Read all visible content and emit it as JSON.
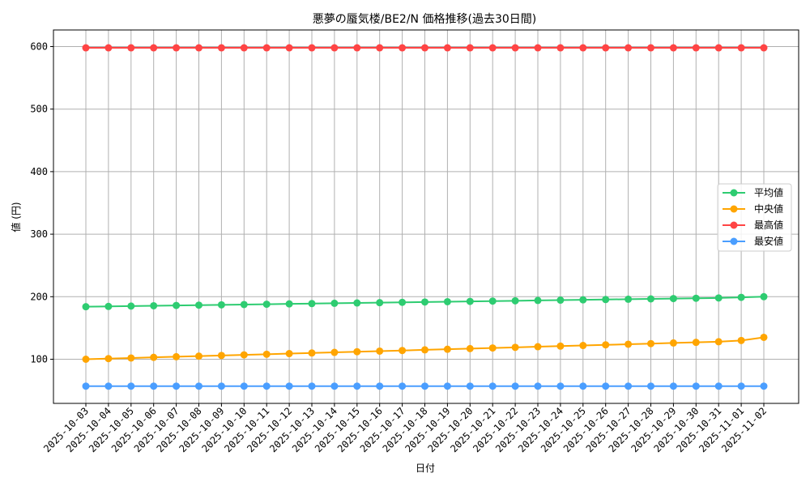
{
  "chart_data": {
    "type": "line",
    "title": "悪夢の蜃気楼/BE2/N 価格推移(過去30日間)",
    "xlabel": "日付",
    "ylabel": "値 (円)",
    "ylim": [
      30,
      625
    ],
    "yticks": [
      100,
      200,
      300,
      400,
      500,
      600
    ],
    "grid": true,
    "legend_position": "center right",
    "x": [
      "2025-10-03",
      "2025-10-04",
      "2025-10-05",
      "2025-10-06",
      "2025-10-07",
      "2025-10-08",
      "2025-10-09",
      "2025-10-10",
      "2025-10-11",
      "2025-10-12",
      "2025-10-13",
      "2025-10-14",
      "2025-10-15",
      "2025-10-16",
      "2025-10-17",
      "2025-10-18",
      "2025-10-19",
      "2025-10-20",
      "2025-10-21",
      "2025-10-22",
      "2025-10-23",
      "2025-10-24",
      "2025-10-25",
      "2025-10-26",
      "2025-10-27",
      "2025-10-28",
      "2025-10-29",
      "2025-10-30",
      "2025-10-31",
      "2025-11-01",
      "2025-11-02"
    ],
    "series": [
      {
        "name": "平均値",
        "color": "#2ecc71",
        "values": [
          184,
          184.5,
          185,
          185.5,
          186,
          186.5,
          187,
          187.5,
          188,
          188.5,
          189,
          189.5,
          190,
          190.5,
          191,
          191.5,
          192,
          192.5,
          193,
          193.5,
          194,
          194.5,
          195,
          195.5,
          196,
          196.5,
          197,
          197.5,
          198,
          199,
          200
        ]
      },
      {
        "name": "中央値",
        "color": "#ffa500",
        "values": [
          100,
          101,
          102,
          103,
          104,
          105,
          106,
          107,
          108,
          109,
          110,
          111,
          112,
          113,
          114,
          115,
          116,
          117,
          118,
          119,
          120,
          121,
          122,
          123,
          124,
          125,
          126,
          127,
          128,
          130,
          135
        ]
      },
      {
        "name": "最高値",
        "color": "#ff4444",
        "values": [
          598,
          598,
          598,
          598,
          598,
          598,
          598,
          598,
          598,
          598,
          598,
          598,
          598,
          598,
          598,
          598,
          598,
          598,
          598,
          598,
          598,
          598,
          598,
          598,
          598,
          598,
          598,
          598,
          598,
          598,
          598
        ]
      },
      {
        "name": "最安値",
        "color": "#4a9eff",
        "values": [
          57,
          57,
          57,
          57,
          57,
          57,
          57,
          57,
          57,
          57,
          57,
          57,
          57,
          57,
          57,
          57,
          57,
          57,
          57,
          57,
          57,
          57,
          57,
          57,
          57,
          57,
          57,
          57,
          57,
          57,
          57
        ]
      }
    ]
  }
}
